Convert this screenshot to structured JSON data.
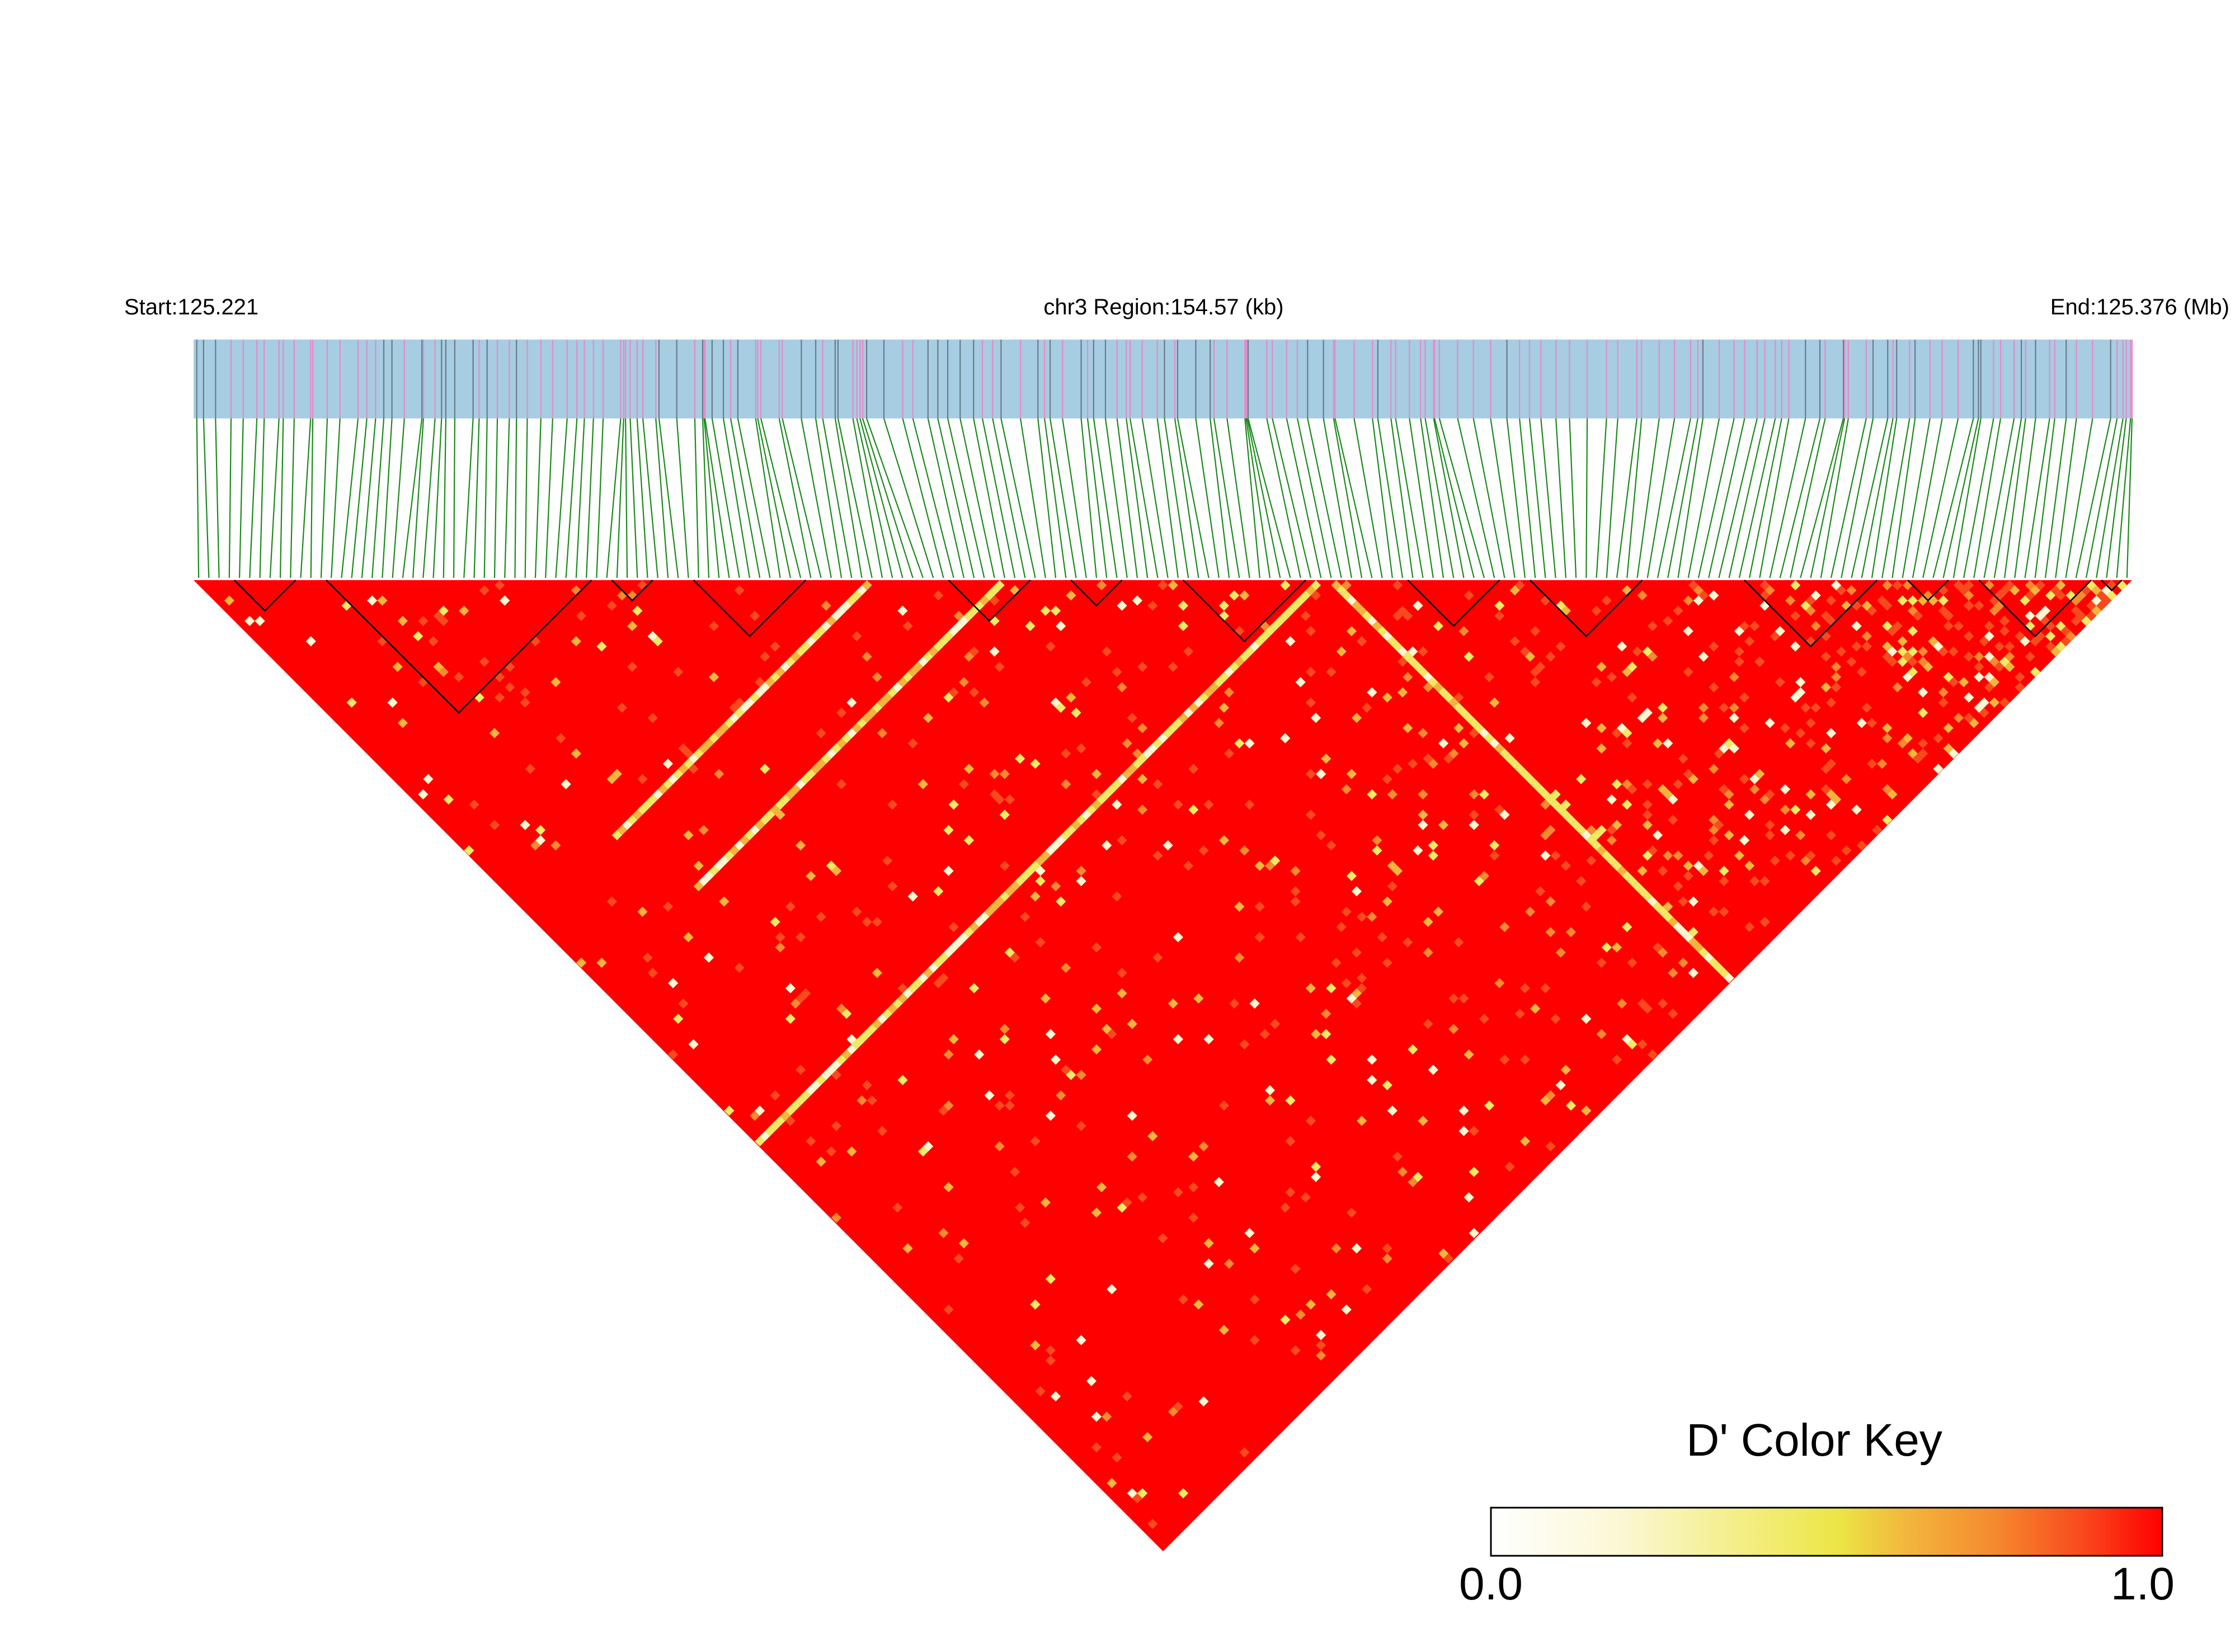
{
  "header": {
    "start": "Start:125.221",
    "region": "chr3 Region:154.57 (kb)",
    "end": "End:125.376 (Mb)"
  },
  "colors": {
    "track_bg": "#a6cde2",
    "snp_mark_pink": "#e68ac8",
    "snp_mark_grey": "#6b7b8c",
    "connector": "#1a8a1a",
    "high_ld": "#ff0000",
    "mid_ld": "#f5eb45",
    "low_ld": "#ffffff",
    "block_outline": "#000000"
  },
  "chart_data": {
    "type": "heatmap",
    "title": "",
    "chromosome": "chr3",
    "region_start_mb": 125.221,
    "region_end_mb": 125.376,
    "region_length_kb": 154.57,
    "metric": "D'",
    "value_range": [
      0.0,
      1.0
    ],
    "overall_level": "mostly 1.0 (red)",
    "haplotype_block_count": 16,
    "color_key": {
      "title": "D' Color Key",
      "min_label": "0.0",
      "max_label": "1.0",
      "stops": [
        "#ffffff",
        "#fbf7d2",
        "#f0ea63",
        "#ebe545",
        "#f2b63d",
        "#f58a2e",
        "#f94a1e",
        "#ff0000"
      ]
    }
  }
}
